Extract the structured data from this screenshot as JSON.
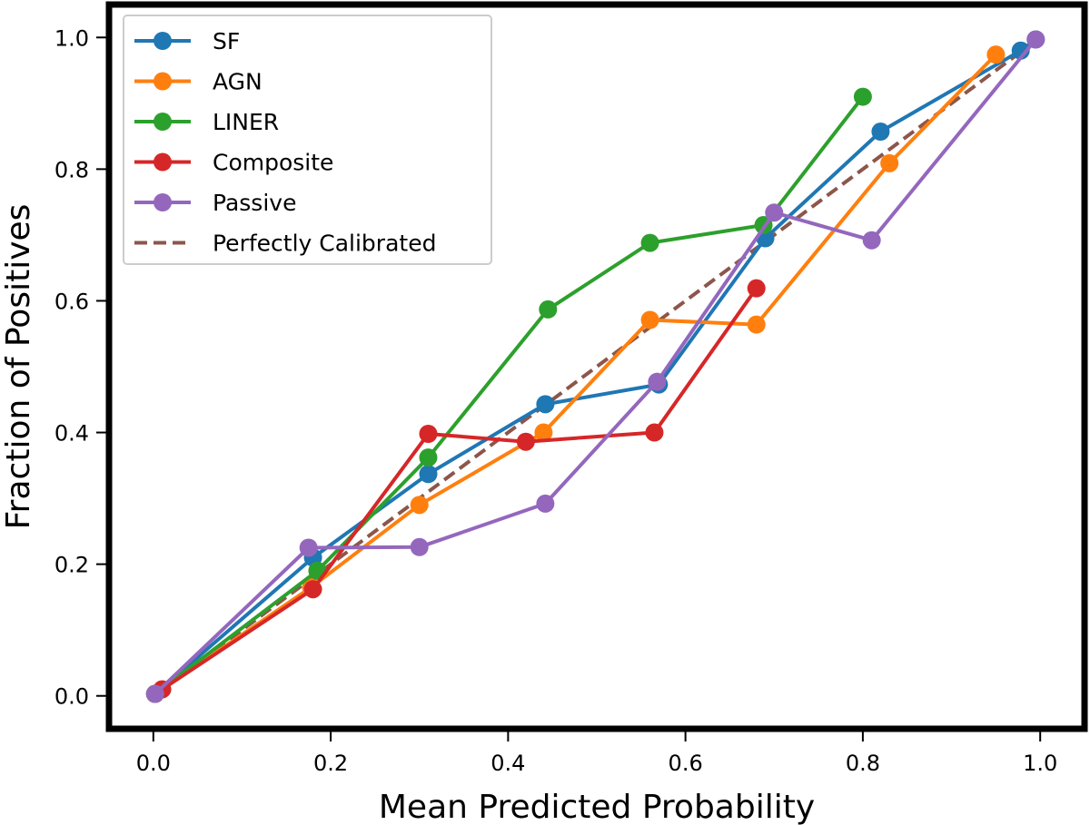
{
  "chart_data": {
    "type": "line",
    "title": "",
    "xlabel": "Mean Predicted Probability",
    "ylabel": "Fraction of Positives",
    "xlim": [
      -0.05,
      1.05
    ],
    "ylim": [
      -0.05,
      1.05
    ],
    "xticks": [
      0.0,
      0.2,
      0.4,
      0.6,
      0.8,
      1.0
    ],
    "yticks": [
      0.0,
      0.2,
      0.4,
      0.6,
      0.8,
      1.0
    ],
    "xtick_labels": [
      "0.0",
      "0.2",
      "0.4",
      "0.6",
      "0.8",
      "1.0"
    ],
    "ytick_labels": [
      "0.0",
      "0.2",
      "0.4",
      "0.6",
      "0.8",
      "1.0"
    ],
    "grid": false,
    "legend_position": "top-left",
    "series": [
      {
        "name": "SF",
        "color": "#1f77b4",
        "marker": "circle",
        "x": [
          0.002,
          0.18,
          0.31,
          0.442,
          0.57,
          0.69,
          0.82,
          0.978,
          0.995
        ],
        "y": [
          0.003,
          0.21,
          0.337,
          0.443,
          0.473,
          0.695,
          0.857,
          0.98,
          0.997
        ]
      },
      {
        "name": "AGN",
        "color": "#ff7f0e",
        "marker": "circle",
        "x": [
          0.002,
          0.178,
          0.3,
          0.44,
          0.56,
          0.68,
          0.83,
          0.95
        ],
        "y": [
          0.003,
          0.165,
          0.29,
          0.4,
          0.571,
          0.564,
          0.809,
          0.974
        ]
      },
      {
        "name": "LINER",
        "color": "#2ca02c",
        "marker": "circle",
        "x": [
          0.002,
          0.185,
          0.31,
          0.445,
          0.56,
          0.688,
          0.8
        ],
        "y": [
          0.003,
          0.19,
          0.362,
          0.587,
          0.688,
          0.715,
          0.91
        ]
      },
      {
        "name": "Composite",
        "color": "#d62728",
        "marker": "circle",
        "x": [
          0.01,
          0.18,
          0.31,
          0.42,
          0.565,
          0.68
        ],
        "y": [
          0.01,
          0.162,
          0.398,
          0.386,
          0.4,
          0.619
        ]
      },
      {
        "name": "Passive",
        "color": "#9467bd",
        "marker": "circle",
        "x": [
          0.002,
          0.175,
          0.3,
          0.442,
          0.568,
          0.7,
          0.81,
          0.995
        ],
        "y": [
          0.003,
          0.225,
          0.226,
          0.292,
          0.477,
          0.734,
          0.692,
          0.997
        ]
      },
      {
        "name": "Perfectly Calibrated",
        "color": "#8c564b",
        "marker": "none",
        "dashed": true,
        "x": [
          0.0,
          1.0
        ],
        "y": [
          0.0,
          1.0
        ]
      }
    ]
  }
}
